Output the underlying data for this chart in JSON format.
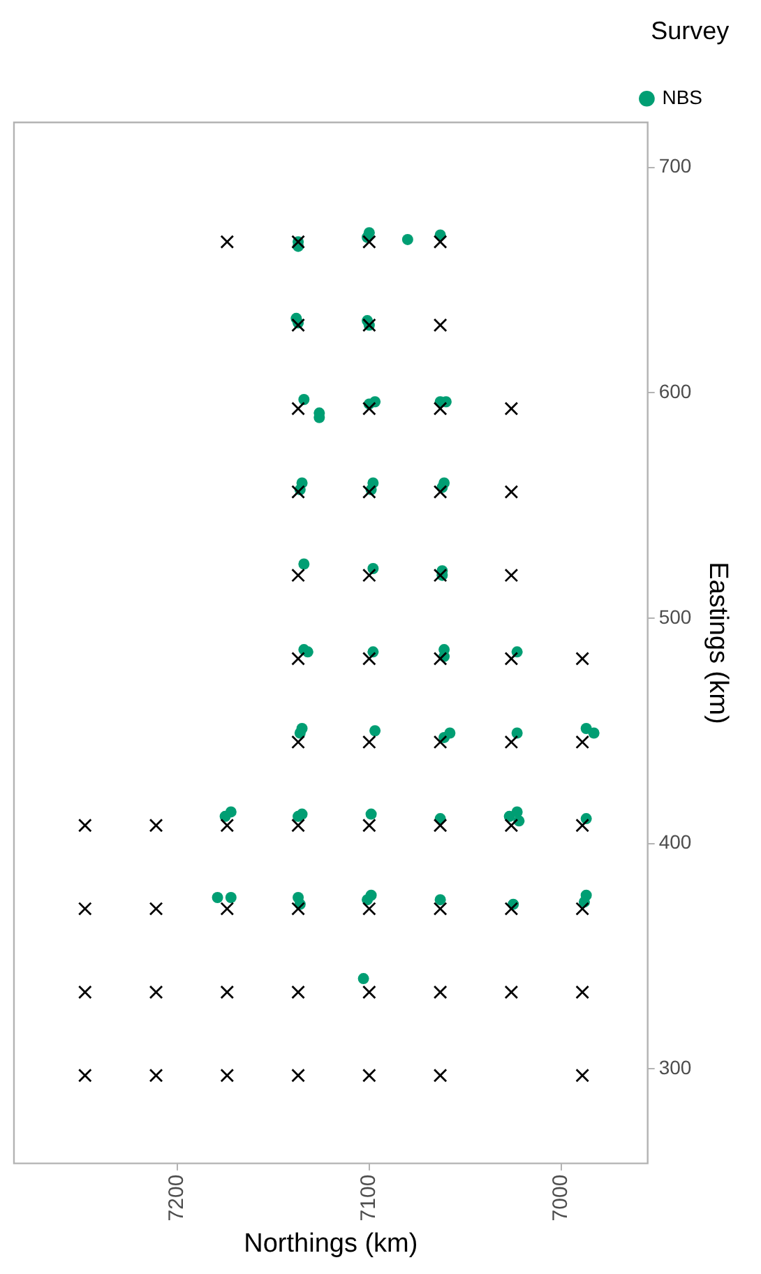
{
  "chart_data": {
    "type": "scatter",
    "xlabel": "Northings (km)",
    "ylabel": "Eastings (km)",
    "legend_title": "Survey",
    "legend": "top right",
    "xlim": [
      7285,
      6955
    ],
    "xticks": [
      7000,
      7100,
      7200
    ],
    "ylim": [
      258,
      720
    ],
    "yticks": [
      300,
      400,
      500,
      600,
      700
    ],
    "series": [
      {
        "color": "#000000",
        "marker": "cross",
        "x": [
          7248,
          7211,
          7174,
          7137,
          7100,
          7063,
          6989,
          7248,
          7211,
          7174,
          7137,
          7100,
          7063,
          7026,
          6989,
          7248,
          7211,
          7174,
          7137,
          7100,
          7063,
          7026,
          6989,
          7248,
          7211,
          7174,
          7137,
          7100,
          7063,
          7026,
          6989,
          7137,
          7100,
          7063,
          7026,
          6989,
          7137,
          7100,
          7063,
          7026,
          6989,
          7137,
          7100,
          7063,
          7026,
          7137,
          7100,
          7063,
          7026,
          7137,
          7100,
          7063,
          7026,
          7137,
          7100,
          7063,
          7174,
          7137,
          7100,
          7063
        ],
        "values": [
          297,
          297,
          297,
          297,
          297,
          297,
          297,
          334,
          334,
          334,
          334,
          334,
          334,
          334,
          334,
          371,
          371,
          371,
          371,
          371,
          371,
          371,
          371,
          408,
          408,
          408,
          408,
          408,
          408,
          408,
          408,
          445,
          445,
          445,
          445,
          445,
          482,
          482,
          482,
          482,
          482,
          519,
          519,
          519,
          519,
          556,
          556,
          556,
          556,
          593,
          593,
          593,
          593,
          630,
          630,
          630,
          667,
          667,
          667,
          667
        ]
      },
      {
        "name": "NBS",
        "color": "#009e73",
        "marker": "circle",
        "x": [
          7175,
          7172,
          7137,
          7135,
          7099,
          7063,
          7027,
          7023,
          7022,
          6987,
          7179,
          7172,
          7137,
          7136,
          7101,
          7099,
          7063,
          7025,
          6987,
          6988,
          7103,
          7135,
          7136,
          7097,
          7061,
          7058,
          7023,
          6987,
          6983,
          7134,
          7132,
          7098,
          7061,
          7061,
          7023,
          7134,
          7098,
          7062,
          7062,
          7135,
          7136,
          7098,
          7099,
          7061,
          7062,
          7134,
          7126,
          7126,
          7100,
          7097,
          7063,
          7060,
          7138,
          7137,
          7101,
          7100,
          7137,
          7137,
          7101,
          7100,
          7080,
          7063
        ],
        "values": [
          412,
          414,
          412,
          413,
          413,
          411,
          412,
          414,
          410,
          411,
          376,
          376,
          376,
          373,
          375,
          377,
          375,
          373,
          377,
          374,
          340,
          451,
          449,
          450,
          447,
          449,
          449,
          451,
          449,
          486,
          485,
          485,
          486,
          483,
          485,
          524,
          522,
          521,
          519,
          560,
          557,
          560,
          557,
          560,
          558,
          597,
          591,
          589,
          595,
          596,
          596,
          596,
          633,
          631,
          632,
          630,
          667,
          665,
          669,
          671,
          668,
          670
        ]
      }
    ]
  }
}
